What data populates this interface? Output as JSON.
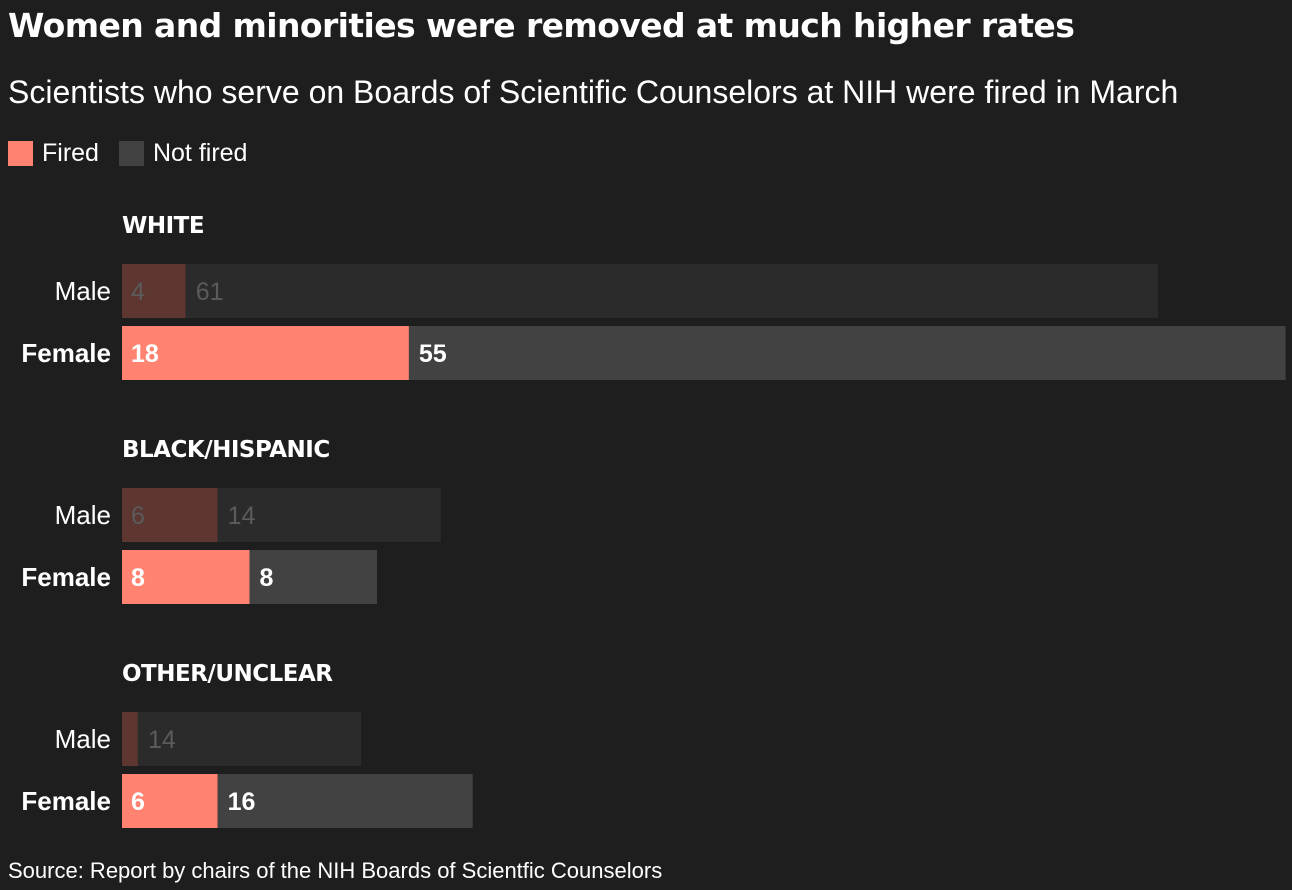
{
  "title": "Women and minorities were removed at much higher rates",
  "subtitle": "Scientists who serve on Boards of Scientific Counselors at NIH were fired in March",
  "legend": {
    "fired": "Fired",
    "not_fired": "Not fired"
  },
  "source": "Source: Report by chairs of the NIH Boards of Scientfic Counselors",
  "colors": {
    "background": "#1e1e1e",
    "fired_highlight": "#ff8370",
    "not_fired_highlight": "#424242",
    "fired_muted": "#5e3631",
    "not_fired_muted": "#2b2b2b",
    "label_highlight": "#ffffff",
    "label_muted": "#5b5b5b"
  },
  "chart_data": {
    "type": "bar",
    "orientation": "horizontal",
    "stacked": true,
    "grid": false,
    "legend_position": "top-left",
    "series": [
      {
        "name": "Fired"
      },
      {
        "name": "Not fired"
      }
    ],
    "groups": [
      {
        "name": "WHITE",
        "rows": [
          {
            "label": "Male",
            "fired": 4,
            "not_fired": 61,
            "highlight": false
          },
          {
            "label": "Female",
            "fired": 18,
            "not_fired": 55,
            "highlight": true
          }
        ]
      },
      {
        "name": "BLACK/HISPANIC",
        "rows": [
          {
            "label": "Male",
            "fired": 6,
            "not_fired": 14,
            "highlight": false
          },
          {
            "label": "Female",
            "fired": 8,
            "not_fired": 8,
            "highlight": true
          }
        ]
      },
      {
        "name": "OTHER/UNCLEAR",
        "rows": [
          {
            "label": "Male",
            "fired": 1,
            "not_fired": 14,
            "highlight": false,
            "fired_label": ""
          },
          {
            "label": "Female",
            "fired": 6,
            "not_fired": 16,
            "highlight": true
          }
        ]
      }
    ]
  }
}
